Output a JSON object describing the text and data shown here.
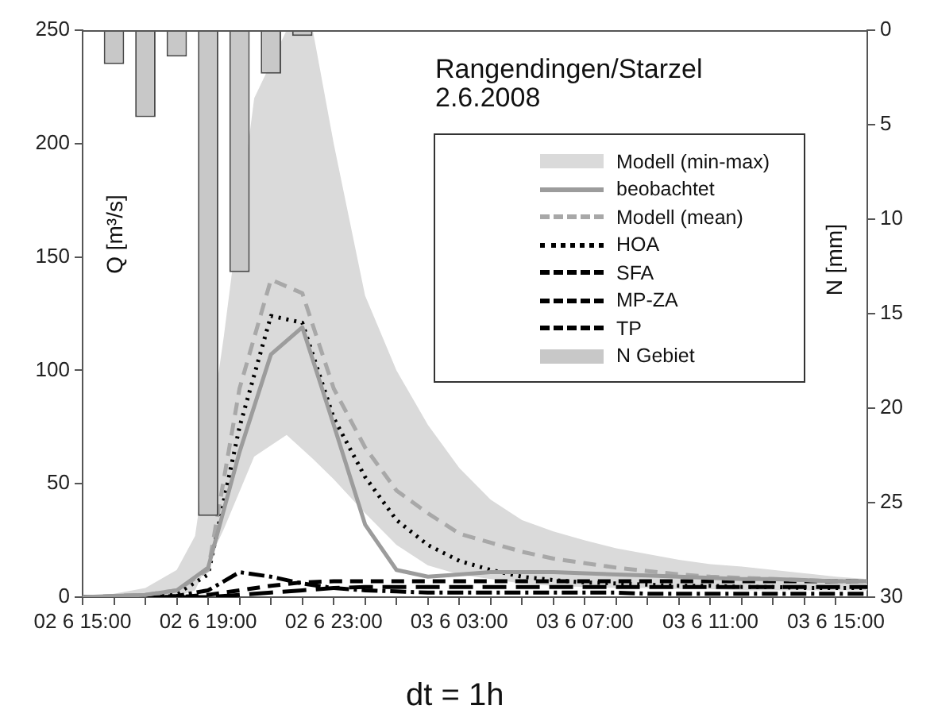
{
  "chart_data": {
    "type": "line",
    "title": "Rangendingen/Starzel",
    "subtitle": "2.6.2008",
    "ylabel": "Q [m³/s]",
    "y2label": "N [mm]",
    "annotations": [
      "dt = 1h"
    ],
    "x": [
      "2008-06-02T15:00",
      "2008-06-02T16:00",
      "2008-06-02T17:00",
      "2008-06-02T18:00",
      "2008-06-02T19:00",
      "2008-06-02T20:00",
      "2008-06-02T21:00",
      "2008-06-02T22:00",
      "2008-06-02T23:00",
      "2008-06-03T00:00",
      "2008-06-03T01:00",
      "2008-06-03T02:00",
      "2008-06-03T03:00",
      "2008-06-03T04:00",
      "2008-06-03T05:00",
      "2008-06-03T06:00",
      "2008-06-03T07:00",
      "2008-06-03T08:00",
      "2008-06-03T09:00",
      "2008-06-03T10:00",
      "2008-06-03T11:00",
      "2008-06-03T12:00",
      "2008-06-03T13:00",
      "2008-06-03T14:00",
      "2008-06-03T15:00",
      "2008-06-03T16:00"
    ],
    "series": [
      {
        "name": "Modell (min-max)",
        "type": "area",
        "color": "#dadada",
        "x": [
          "2008-06-02T15:00",
          "2008-06-02T16:00",
          "2008-06-02T17:00",
          "2008-06-02T18:00",
          "2008-06-02T18:35",
          "2008-06-02T19:30",
          "2008-06-02T20:28",
          "2008-06-02T21:30",
          "2008-06-02T22:20",
          "2008-06-02T23:00",
          "2008-06-03T00:00",
          "2008-06-03T01:00",
          "2008-06-03T02:00",
          "2008-06-03T03:00",
          "2008-06-03T04:00",
          "2008-06-03T05:00",
          "2008-06-03T06:00",
          "2008-06-03T07:00",
          "2008-06-03T08:00",
          "2008-06-03T09:00",
          "2008-06-03T10:00",
          "2008-06-03T11:00",
          "2008-06-03T12:00",
          "2008-06-03T13:00",
          "2008-06-03T14:00",
          "2008-06-03T15:00",
          "2008-06-03T16:00"
        ],
        "values": [
          null,
          null,
          null,
          null,
          null,
          null,
          null,
          null,
          null,
          null,
          null,
          null,
          null,
          null,
          null,
          null,
          null,
          null,
          null,
          null,
          null,
          null,
          null,
          null,
          null,
          null,
          null
        ],
        "upper": [
          0,
          1.5,
          4,
          12,
          27,
          115,
          220,
          250,
          250,
          200,
          133,
          100,
          76,
          57,
          43,
          34,
          29,
          25,
          21.5,
          19,
          16.5,
          14.5,
          13.5,
          12,
          10.5,
          9,
          8
        ],
        "lower": [
          0,
          0,
          0,
          0.5,
          3,
          30,
          62,
          71.5,
          61,
          52,
          37,
          23,
          14,
          10,
          8,
          6,
          5,
          4.5,
          4,
          4,
          3.5,
          3.5,
          3,
          3,
          3,
          3,
          3
        ]
      },
      {
        "name": "beobachtet",
        "color": "#9c9c9c",
        "line_style": "solid",
        "values": [
          0,
          0.5,
          1,
          3,
          13,
          64,
          107,
          119,
          76,
          32,
          12,
          9,
          10,
          11,
          11,
          11,
          10.5,
          10,
          9.5,
          9,
          8.5,
          8,
          8,
          7.5,
          7,
          7
        ]
      },
      {
        "name": "Modell (mean)",
        "color": "#a8a8a8",
        "line_style": "dashed",
        "values": [
          0,
          0.5,
          1,
          3,
          12,
          92,
          140,
          134,
          92,
          66,
          47,
          37,
          28,
          24,
          20,
          17,
          15,
          13,
          11.5,
          10,
          9,
          8.5,
          8,
          7.5,
          7,
          7
        ]
      },
      {
        "name": "HOA",
        "color": "#000000",
        "line_style": "dotted",
        "values": [
          0,
          0,
          0.5,
          1.5,
          10,
          75,
          124,
          121,
          79,
          53,
          34,
          23,
          16,
          12,
          9,
          7.5,
          6.5,
          6,
          5.5,
          5,
          5,
          4.5,
          4.5,
          4,
          4,
          4
        ]
      },
      {
        "name": "SFA",
        "color": "#000000",
        "line_style": "dashdot",
        "values": [
          0,
          0,
          0,
          0.5,
          3,
          11,
          9,
          6,
          4,
          3,
          2.5,
          2,
          2,
          2,
          2,
          2,
          2,
          2,
          1.5,
          1.5,
          1.5,
          1.5,
          1.5,
          1.5,
          1.5,
          1.5
        ]
      },
      {
        "name": "MP-ZA",
        "color": "#000000",
        "line_style": "dashed",
        "values": [
          0,
          0,
          0,
          0,
          1,
          3,
          5,
          6.5,
          7,
          7,
          7,
          7,
          7,
          7,
          7,
          7,
          7,
          7,
          7,
          7,
          7,
          7,
          7,
          7,
          7,
          7
        ]
      },
      {
        "name": "TP",
        "color": "#000000",
        "line_style": "longdash",
        "values": [
          0,
          0,
          0,
          0,
          0,
          1,
          2,
          3,
          4,
          4.5,
          4.5,
          4.5,
          4.5,
          4.5,
          4.5,
          4.5,
          4.5,
          4.5,
          4.5,
          4.5,
          4.5,
          4.5,
          4.5,
          4.5,
          4.5,
          4.5
        ]
      },
      {
        "name": "N Gebiet",
        "type": "bar",
        "axis": "y2",
        "color": "#c8c8c8",
        "x": [
          "2008-06-02T16:00",
          "2008-06-02T17:00",
          "2008-06-02T18:00",
          "2008-06-02T19:00",
          "2008-06-02T20:00",
          "2008-06-02T21:00",
          "2008-06-02T22:00"
        ],
        "values": [
          1.8,
          4.6,
          1.4,
          25.7,
          12.8,
          2.3,
          0.3
        ]
      }
    ],
    "xlim": [
      "2008-06-02T15:00",
      "2008-06-03T16:00"
    ],
    "xticks": [
      {
        "value": "2008-06-02T15:00",
        "label": "02 6 15:00"
      },
      {
        "value": "2008-06-02T16:00",
        "label": null
      },
      {
        "value": "2008-06-02T17:00",
        "label": null
      },
      {
        "value": "2008-06-02T18:00",
        "label": null
      },
      {
        "value": "2008-06-02T19:00",
        "label": "02 6 19:00"
      },
      {
        "value": "2008-06-02T20:00",
        "label": null
      },
      {
        "value": "2008-06-02T21:00",
        "label": null
      },
      {
        "value": "2008-06-02T22:00",
        "label": null
      },
      {
        "value": "2008-06-02T23:00",
        "label": "02 6 23:00"
      },
      {
        "value": "2008-06-03T00:00",
        "label": null
      },
      {
        "value": "2008-06-03T01:00",
        "label": null
      },
      {
        "value": "2008-06-03T02:00",
        "label": null
      },
      {
        "value": "2008-06-03T03:00",
        "label": "03 6 03:00"
      },
      {
        "value": "2008-06-03T04:00",
        "label": null
      },
      {
        "value": "2008-06-03T05:00",
        "label": null
      },
      {
        "value": "2008-06-03T06:00",
        "label": null
      },
      {
        "value": "2008-06-03T07:00",
        "label": "03 6 07:00"
      },
      {
        "value": "2008-06-03T08:00",
        "label": null
      },
      {
        "value": "2008-06-03T09:00",
        "label": null
      },
      {
        "value": "2008-06-03T10:00",
        "label": null
      },
      {
        "value": "2008-06-03T11:00",
        "label": "03 6 11:00"
      },
      {
        "value": "2008-06-03T12:00",
        "label": null
      },
      {
        "value": "2008-06-03T13:00",
        "label": null
      },
      {
        "value": "2008-06-03T14:00",
        "label": null
      },
      {
        "value": "2008-06-03T15:00",
        "label": "03 6 15:00"
      }
    ],
    "ylim": [
      0,
      250
    ],
    "yticks": [
      0,
      50,
      100,
      150,
      200,
      250
    ],
    "y2lim": [
      30,
      0
    ],
    "y2ticks": [
      0,
      5,
      10,
      15,
      20,
      25,
      30
    ],
    "grid": false,
    "legend": "top right"
  }
}
